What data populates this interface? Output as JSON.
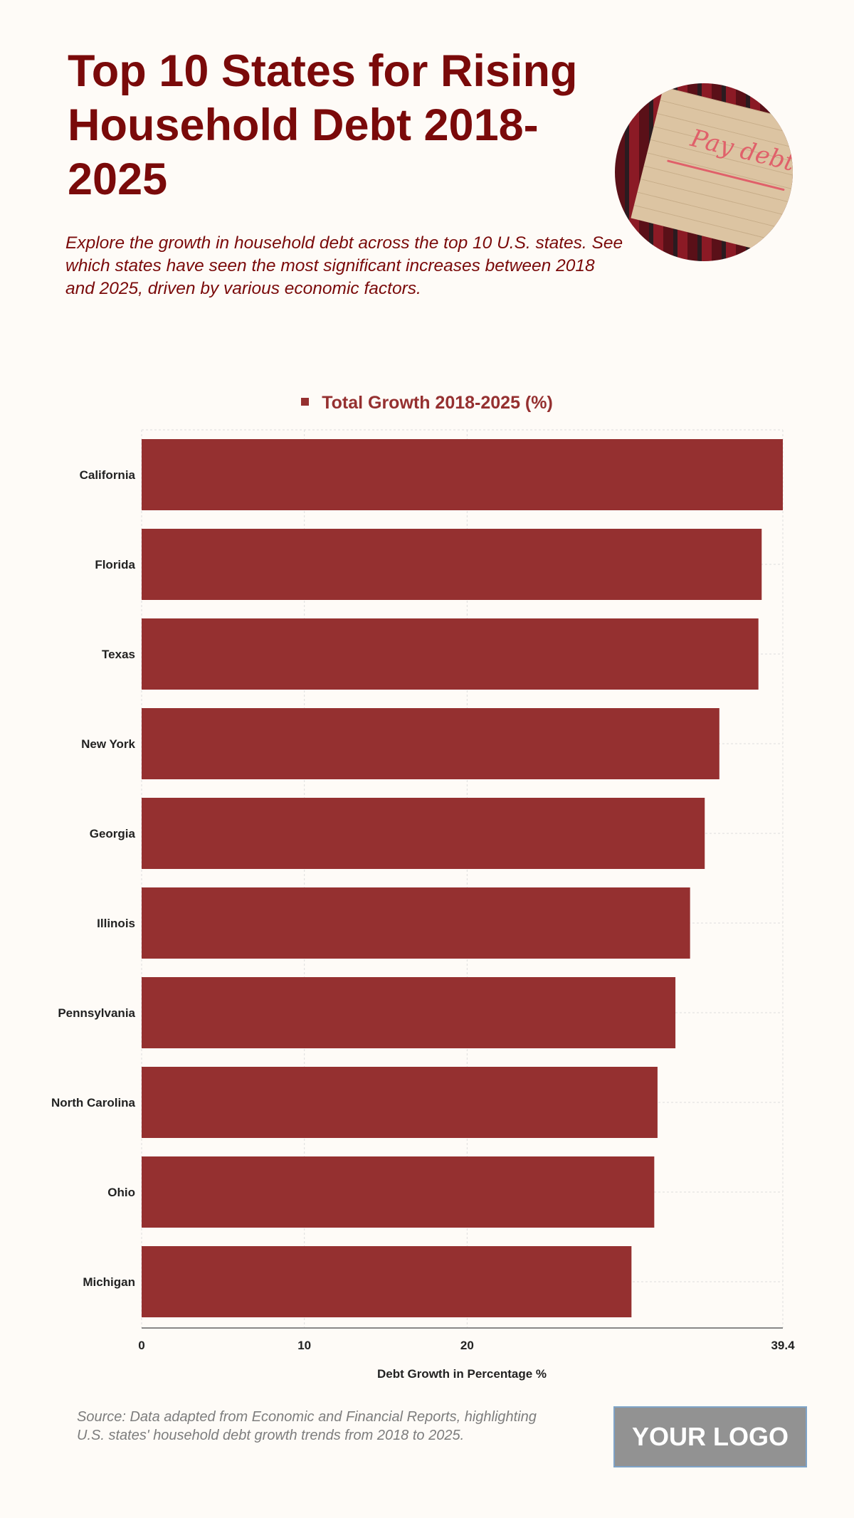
{
  "header": {
    "title": "Top 10 States for Rising Household Debt 2018-2025",
    "subtitle": "Explore the growth in household debt across the top 10 U.S. states. See which states have seen the most significant increases between 2018 and 2025, driven by various economic factors.",
    "photo_text": "Pay debt"
  },
  "chart_data": {
    "type": "bar",
    "orientation": "horizontal",
    "categories": [
      "California",
      "Florida",
      "Texas",
      "New York",
      "Georgia",
      "Illinois",
      "Pennsylvania",
      "North Carolina",
      "Ohio",
      "Michigan"
    ],
    "series": [
      {
        "name": "Total Growth 2018-2025 (%)",
        "values": [
          39.4,
          38.1,
          37.9,
          35.5,
          34.6,
          33.7,
          32.8,
          31.7,
          31.5,
          30.1
        ],
        "color": "#953030"
      }
    ],
    "xlabel": "Debt Growth in Percentage %",
    "ylabel": "",
    "xlim": [
      0,
      39.4
    ],
    "xticks": [
      "0",
      "10",
      "20",
      "39.4"
    ],
    "xtick_values": [
      0,
      10,
      20,
      39.4
    ],
    "grid": true,
    "legend_position": "top-center"
  },
  "footer": {
    "source": "Source: Data adapted from Economic and Financial Reports, highlighting U.S. states' household debt growth trends from 2018 to 2025.",
    "logo": "YOUR LOGO"
  }
}
